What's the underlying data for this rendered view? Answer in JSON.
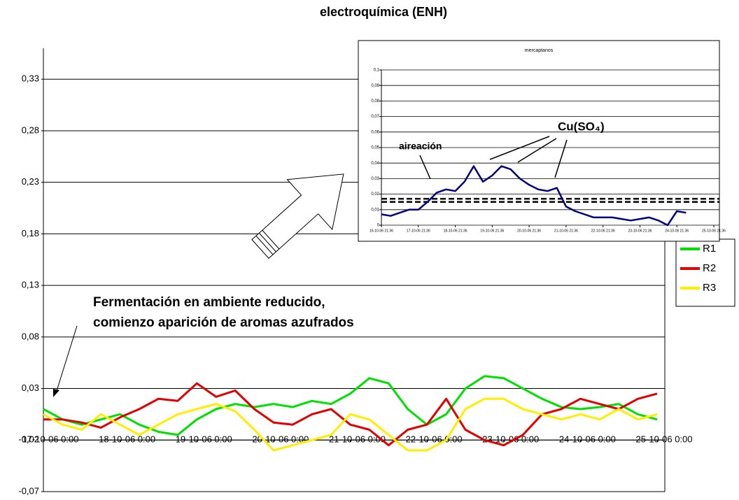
{
  "chart_data": [
    {
      "type": "line",
      "title": "electroquímica (ENH)",
      "annotation": [
        "Fermentación en ambiente reducido,",
        "comienzo aparición de aromas azufrados"
      ],
      "ylim": [
        -0.07,
        0.36
      ],
      "yticks": [
        {
          "value": -0.07,
          "label": "-0,07"
        },
        {
          "value": -0.02,
          "label": "-0,02"
        },
        {
          "value": 0.03,
          "label": "0,03"
        },
        {
          "value": 0.08,
          "label": "0,08"
        },
        {
          "value": 0.13,
          "label": "0,13"
        },
        {
          "value": 0.18,
          "label": "0,18"
        },
        {
          "value": 0.23,
          "label": "0,23"
        },
        {
          "value": 0.28,
          "label": "0,28"
        },
        {
          "value": 0.33,
          "label": "0,33"
        }
      ],
      "xlim": [
        0,
        8.1
      ],
      "xticks": [
        {
          "value": 0,
          "label": "17-10-06 0:00"
        },
        {
          "value": 1,
          "label": "18-10-06 0:00"
        },
        {
          "value": 2,
          "label": "19-10-06 0:00"
        },
        {
          "value": 3,
          "label": "20-10-06 0:00"
        },
        {
          "value": 4,
          "label": "21-10-06 0:00"
        },
        {
          "value": 5,
          "label": "22-10-06 0:00"
        },
        {
          "value": 6,
          "label": "23-10-06 0:00"
        },
        {
          "value": 7,
          "label": "24-10-06 0:00"
        },
        {
          "value": 8,
          "label": "25-10-06 0:00"
        }
      ],
      "x_axis_at": -0.02,
      "grid": true,
      "legend": "right",
      "x": [
        0,
        0.25,
        0.5,
        0.75,
        1,
        1.25,
        1.5,
        1.75,
        2,
        2.25,
        2.5,
        2.75,
        3,
        3.25,
        3.5,
        3.75,
        4,
        4.25,
        4.5,
        4.75,
        5,
        5.25,
        5.5,
        5.75,
        6,
        6.25,
        6.5,
        6.75,
        7,
        7.25,
        7.5,
        7.75,
        8
      ],
      "series": [
        {
          "name": "R1",
          "color": "#00e000",
          "values": [
            0.01,
            0.0,
            -0.005,
            0.0,
            0.005,
            -0.005,
            -0.012,
            -0.015,
            0.0,
            0.01,
            0.015,
            0.012,
            0.015,
            0.012,
            0.018,
            0.015,
            0.025,
            0.04,
            0.035,
            0.01,
            -0.005,
            0.005,
            0.03,
            0.042,
            0.04,
            0.03,
            0.02,
            0.012,
            0.01,
            0.012,
            0.015,
            0.005,
            0.0
          ]
        },
        {
          "name": "R2",
          "color": "#e00000",
          "values": [
            0.0,
            0.0,
            -0.003,
            -0.008,
            0.002,
            0.01,
            0.02,
            0.018,
            0.035,
            0.022,
            0.028,
            0.01,
            -0.003,
            -0.005,
            0.005,
            0.01,
            -0.005,
            -0.01,
            -0.025,
            -0.01,
            -0.005,
            0.02,
            -0.01,
            -0.02,
            -0.025,
            -0.015,
            0.005,
            0.01,
            0.02,
            0.015,
            0.01,
            0.02,
            0.025
          ]
        },
        {
          "name": "R3",
          "color": "#ffee00",
          "values": [
            0.005,
            -0.005,
            -0.01,
            0.005,
            -0.005,
            -0.015,
            -0.005,
            0.005,
            0.01,
            0.015,
            0.008,
            -0.01,
            -0.03,
            -0.025,
            -0.02,
            -0.015,
            0.005,
            0.0,
            -0.015,
            -0.03,
            -0.03,
            -0.02,
            0.01,
            0.02,
            0.02,
            0.01,
            0.005,
            0.0,
            0.005,
            0.0,
            0.01,
            0.0,
            0.005
          ]
        }
      ]
    },
    {
      "type": "line",
      "title": "mercaptanos",
      "annotations": [
        "aireación",
        "Cu(SO₄)"
      ],
      "ylim": [
        0,
        0.1
      ],
      "yticks": [
        0,
        {
          "value": 0.01,
          "label": "0,01"
        },
        {
          "value": 0.02,
          "label": "0,02"
        },
        {
          "value": 0.03,
          "label": "0,03"
        },
        {
          "value": 0.04,
          "label": "0,04"
        },
        {
          "value": 0.05,
          "label": "0,05"
        },
        {
          "value": 0.06,
          "label": "0,06"
        },
        {
          "value": 0.07,
          "label": "0,07"
        },
        {
          "value": 0.08,
          "label": "0,08"
        },
        {
          "value": 0.09,
          "label": "0,09"
        },
        {
          "value": 0.1,
          "label": "0,1"
        }
      ],
      "xlim": [
        0,
        9
      ],
      "xticks": [
        {
          "value": 0,
          "label": "16-10-06 21:36"
        },
        {
          "value": 1,
          "label": "17-10-06 21:36"
        },
        {
          "value": 2,
          "label": "18-10-06 21:36"
        },
        {
          "value": 3,
          "label": "19-10-06 21:36"
        },
        {
          "value": 4,
          "label": "20-10-06 21:36"
        },
        {
          "value": 5,
          "label": "21-10-06 21:36"
        },
        {
          "value": 6,
          "label": "22-10-06 21:36"
        },
        {
          "value": 7,
          "label": "23-10-06 21:36"
        },
        {
          "value": 8,
          "label": "24-10-06 21:36"
        },
        {
          "value": 9,
          "label": "25-10-06 21:36"
        }
      ],
      "grid": true,
      "reference_lines": [
        0.017,
        0.015
      ],
      "x": [
        0,
        0.25,
        0.5,
        0.75,
        1,
        1.25,
        1.5,
        1.75,
        2,
        2.25,
        2.5,
        2.75,
        3,
        3.25,
        3.5,
        3.75,
        4,
        4.25,
        4.5,
        4.75,
        5,
        5.25,
        5.5,
        5.75,
        6,
        6.25,
        6.5,
        6.75,
        7,
        7.25,
        7.5,
        7.75,
        8,
        8.25
      ],
      "series": [
        {
          "color": "#000080",
          "values": [
            0.007,
            0.006,
            0.008,
            0.01,
            0.01,
            0.015,
            0.021,
            0.023,
            0.022,
            0.028,
            0.038,
            0.028,
            0.032,
            0.038,
            0.036,
            0.03,
            0.026,
            0.023,
            0.022,
            0.024,
            0.012,
            0.009,
            0.007,
            0.005,
            0.005,
            0.005,
            0.004,
            0.003,
            0.004,
            0.005,
            0.003,
            0.0,
            0.009,
            0.008
          ]
        }
      ]
    }
  ]
}
